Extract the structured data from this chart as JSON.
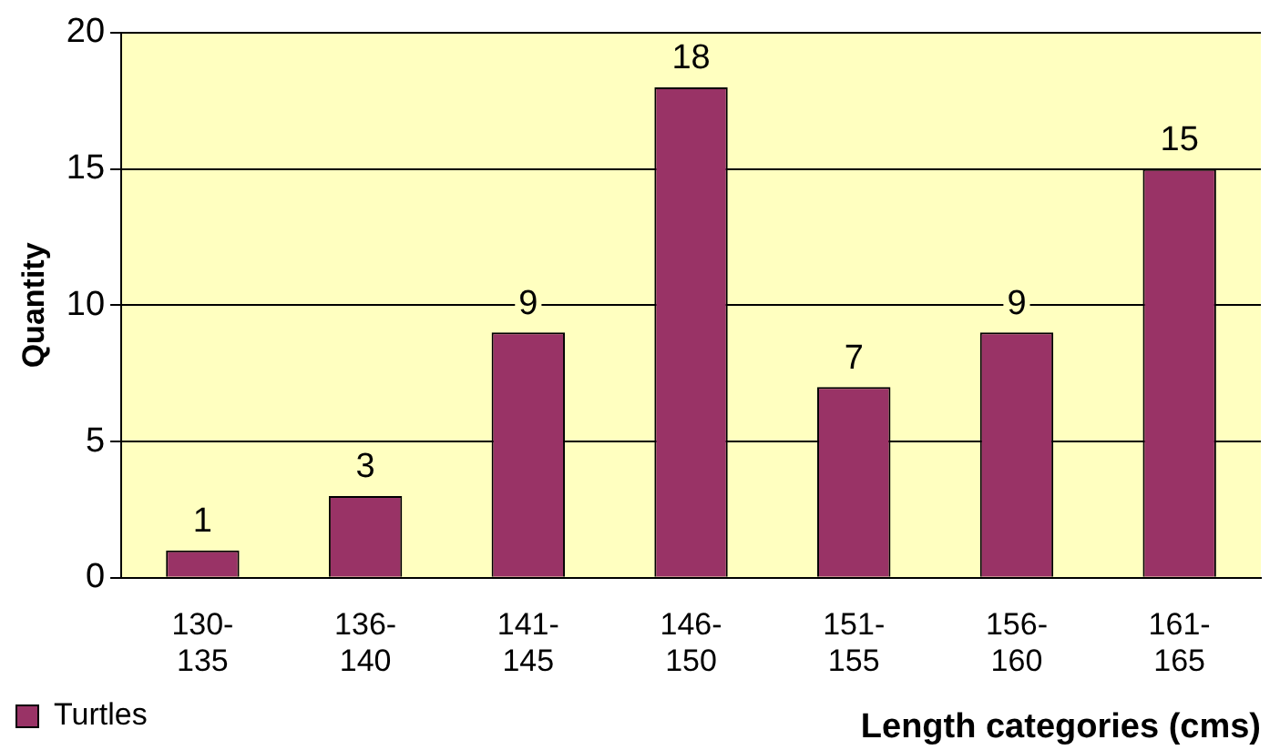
{
  "chart_data": {
    "type": "bar",
    "xlabel": "Length categories (cms)",
    "ylabel": "Quantity",
    "categories": [
      "130-135",
      "136-140",
      "141-145",
      "146-150",
      "151-155",
      "156-160",
      "161-165"
    ],
    "series": [
      {
        "name": "Turtles",
        "color": "#993366",
        "values": [
          1,
          3,
          9,
          18,
          7,
          9,
          15
        ]
      }
    ],
    "ylim": [
      0,
      20
    ],
    "yticks": [
      0,
      5,
      10,
      15,
      20
    ],
    "grid": "y",
    "legend": "bottom left",
    "data_labels": true
  }
}
